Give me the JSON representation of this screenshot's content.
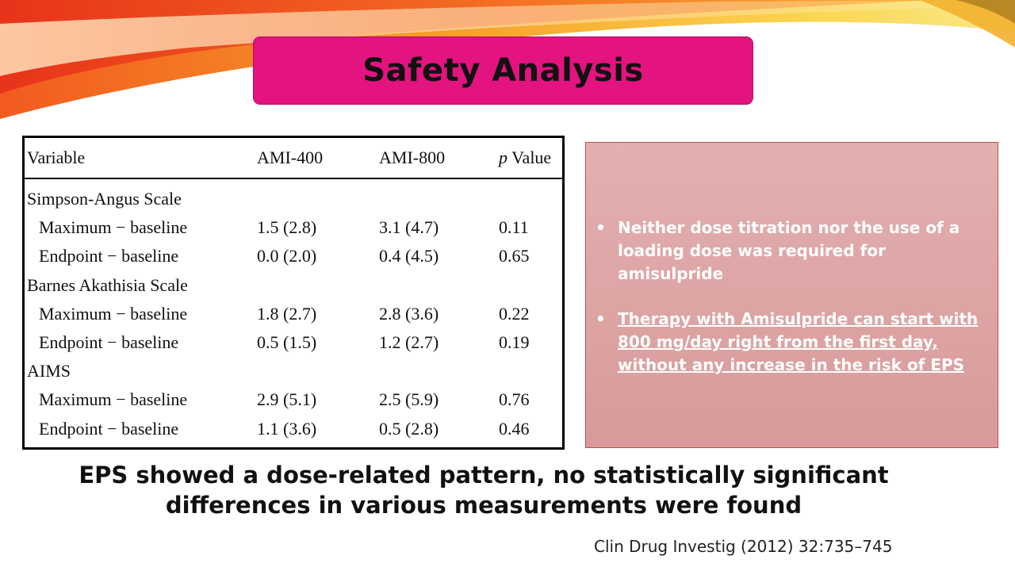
{
  "title": "Safety Analysis",
  "table": {
    "headers": {
      "variable": "Variable",
      "ami400": "AMI-400",
      "ami800": "AMI-800",
      "p_prefix": "p",
      "p_suffix": " Value"
    },
    "rows": [
      {
        "variable": "Simpson-Angus Scale",
        "ami400": "",
        "ami800": "",
        "p": "",
        "indent": false
      },
      {
        "variable": "Maximum − baseline",
        "ami400": "1.5 (2.8)",
        "ami800": "3.1 (4.7)",
        "p": "0.11",
        "indent": true
      },
      {
        "variable": "Endpoint − baseline",
        "ami400": "0.0 (2.0)",
        "ami800": "0.4 (4.5)",
        "p": "0.65",
        "indent": true
      },
      {
        "variable": "Barnes Akathisia Scale",
        "ami400": "",
        "ami800": "",
        "p": "",
        "indent": false
      },
      {
        "variable": "Maximum − baseline",
        "ami400": "1.8 (2.7)",
        "ami800": "2.8 (3.6)",
        "p": "0.22",
        "indent": true
      },
      {
        "variable": "Endpoint − baseline",
        "ami400": "0.5 (1.5)",
        "ami800": "1.2 (2.7)",
        "p": "0.19",
        "indent": true
      },
      {
        "variable": "AIMS",
        "ami400": "",
        "ami800": "",
        "p": "",
        "indent": false
      },
      {
        "variable": "Maximum − baseline",
        "ami400": "2.9 (5.1)",
        "ami800": "2.5 (5.9)",
        "p": "0.76",
        "indent": true
      },
      {
        "variable": "Endpoint − baseline",
        "ami400": "1.1 (3.6)",
        "ami800": "0.5 (2.8)",
        "p": "0.46",
        "indent": true
      }
    ]
  },
  "bullets": [
    {
      "marker": "•",
      "text": "Neither dose titration nor the use of a loading dose was required for amisulpride",
      "underlined": false
    },
    {
      "marker": "•",
      "text": "Therapy with Amisulpride can start with 800 mg/day right from the first day, without any increase in the risk of EPS",
      "underlined": true
    }
  ],
  "summary": {
    "line1": "EPS showed a dose-related pattern, no statistically significant",
    "line2": "differences in various measurements were found"
  },
  "citation": "Clin Drug Investig (2012) 32:735–745",
  "colors": {
    "title_bg": "#e3137f",
    "info_bg": "#dca4a4",
    "bullet_text": "#ffffff"
  }
}
